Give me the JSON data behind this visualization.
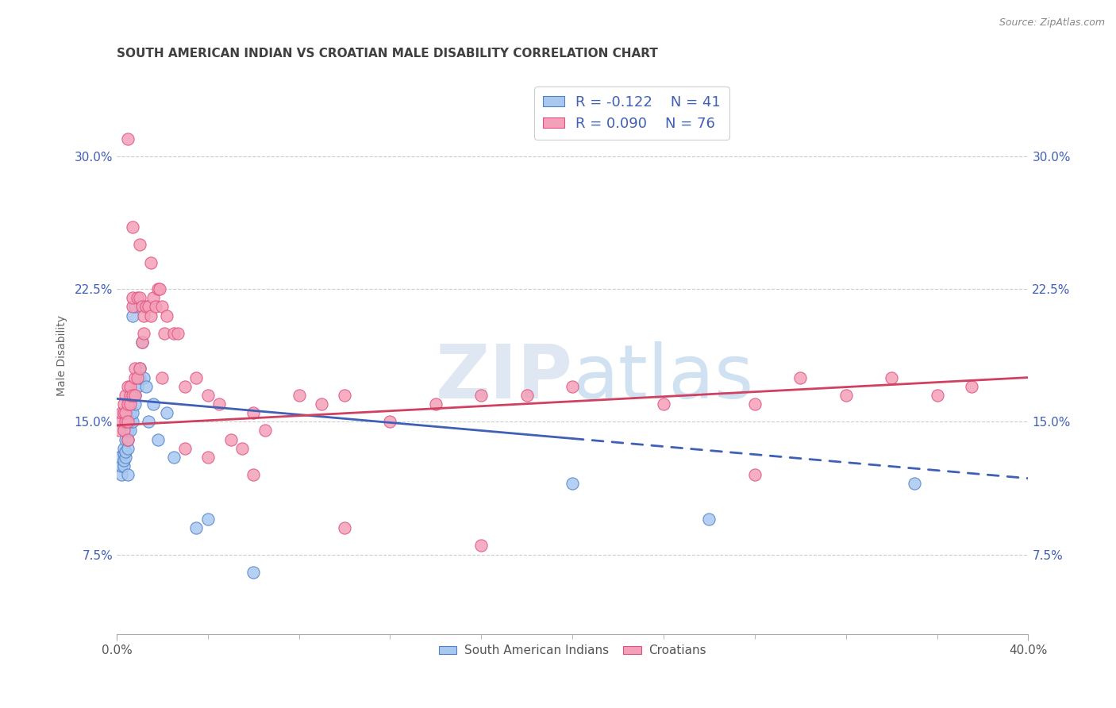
{
  "title": "SOUTH AMERICAN INDIAN VS CROATIAN MALE DISABILITY CORRELATION CHART",
  "source": "Source: ZipAtlas.com",
  "ylabel": "Male Disability",
  "ytick_labels": [
    "7.5%",
    "15.0%",
    "22.5%",
    "30.0%"
  ],
  "ytick_values": [
    0.075,
    0.15,
    0.225,
    0.3
  ],
  "xlim": [
    0.0,
    0.4
  ],
  "ylim": [
    0.03,
    0.345
  ],
  "legend_r1": "-0.122",
  "legend_n1": "41",
  "legend_r2": "0.090",
  "legend_n2": "76",
  "color_blue": "#A8C8F0",
  "color_pink": "#F4A0B8",
  "color_blue_edge": "#5080C8",
  "color_pink_edge": "#E05080",
  "color_blue_line": "#4060B8",
  "color_pink_line": "#D04060",
  "color_title": "#404040",
  "color_source": "#888888",
  "watermark_color": "#C0D0E8",
  "blue_x": [
    0.001,
    0.002,
    0.002,
    0.003,
    0.003,
    0.003,
    0.003,
    0.004,
    0.004,
    0.004,
    0.004,
    0.005,
    0.005,
    0.005,
    0.005,
    0.006,
    0.006,
    0.006,
    0.007,
    0.007,
    0.007,
    0.008,
    0.008,
    0.008,
    0.009,
    0.01,
    0.01,
    0.011,
    0.012,
    0.013,
    0.014,
    0.016,
    0.018,
    0.022,
    0.025,
    0.035,
    0.04,
    0.06,
    0.2,
    0.26,
    0.35
  ],
  "blue_y": [
    0.13,
    0.12,
    0.125,
    0.125,
    0.128,
    0.132,
    0.135,
    0.13,
    0.133,
    0.14,
    0.145,
    0.12,
    0.135,
    0.14,
    0.145,
    0.145,
    0.15,
    0.155,
    0.15,
    0.155,
    0.21,
    0.16,
    0.165,
    0.215,
    0.17,
    0.175,
    0.18,
    0.195,
    0.175,
    0.17,
    0.15,
    0.16,
    0.14,
    0.155,
    0.13,
    0.09,
    0.095,
    0.065,
    0.115,
    0.095,
    0.115
  ],
  "pink_x": [
    0.001,
    0.002,
    0.002,
    0.003,
    0.003,
    0.003,
    0.004,
    0.004,
    0.004,
    0.005,
    0.005,
    0.005,
    0.005,
    0.006,
    0.006,
    0.006,
    0.007,
    0.007,
    0.007,
    0.008,
    0.008,
    0.008,
    0.009,
    0.009,
    0.01,
    0.01,
    0.011,
    0.011,
    0.012,
    0.012,
    0.013,
    0.014,
    0.015,
    0.016,
    0.017,
    0.018,
    0.019,
    0.02,
    0.021,
    0.022,
    0.025,
    0.027,
    0.03,
    0.035,
    0.04,
    0.045,
    0.05,
    0.055,
    0.06,
    0.065,
    0.08,
    0.09,
    0.1,
    0.12,
    0.14,
    0.16,
    0.18,
    0.2,
    0.24,
    0.28,
    0.3,
    0.32,
    0.34,
    0.36,
    0.375,
    0.005,
    0.007,
    0.01,
    0.015,
    0.02,
    0.03,
    0.04,
    0.06,
    0.1,
    0.16,
    0.28
  ],
  "pink_y": [
    0.145,
    0.15,
    0.155,
    0.145,
    0.155,
    0.16,
    0.15,
    0.155,
    0.165,
    0.14,
    0.15,
    0.16,
    0.17,
    0.16,
    0.165,
    0.17,
    0.165,
    0.215,
    0.22,
    0.165,
    0.175,
    0.18,
    0.175,
    0.22,
    0.18,
    0.22,
    0.195,
    0.215,
    0.2,
    0.21,
    0.215,
    0.215,
    0.21,
    0.22,
    0.215,
    0.225,
    0.225,
    0.215,
    0.2,
    0.21,
    0.2,
    0.2,
    0.17,
    0.175,
    0.165,
    0.16,
    0.14,
    0.135,
    0.155,
    0.145,
    0.165,
    0.16,
    0.165,
    0.15,
    0.16,
    0.165,
    0.165,
    0.17,
    0.16,
    0.16,
    0.175,
    0.165,
    0.175,
    0.165,
    0.17,
    0.31,
    0.26,
    0.25,
    0.24,
    0.175,
    0.135,
    0.13,
    0.12,
    0.09,
    0.08,
    0.12
  ],
  "blue_line_start_x": 0.0,
  "blue_line_end_x": 0.4,
  "blue_line_solid_end": 0.2,
  "blue_line_start_y": 0.163,
  "blue_line_end_y": 0.118,
  "pink_line_start_x": 0.0,
  "pink_line_end_x": 0.4,
  "pink_line_start_y": 0.148,
  "pink_line_end_y": 0.175
}
